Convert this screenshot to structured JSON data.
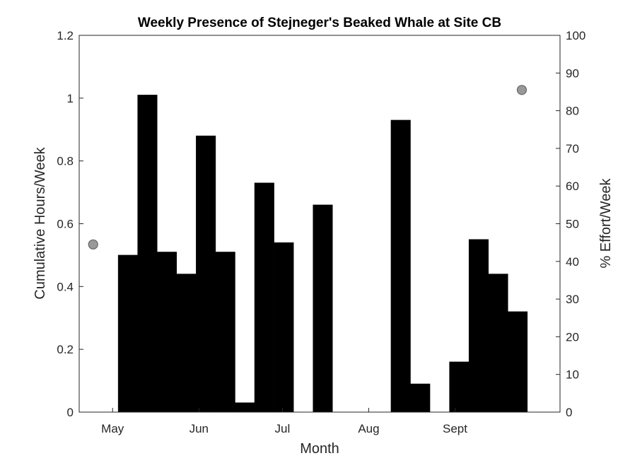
{
  "chart_data": {
    "type": "bar",
    "title": "Weekly Presence of Stejneger's Beaked Whale at Site CB",
    "xlabel": "Month",
    "ylabel_left": "Cumulative Hours/Week",
    "ylabel_right": "% Effort/Week",
    "ylim_left": [
      0,
      1.2
    ],
    "ylim_right": [
      0,
      100
    ],
    "left_ticks": [
      "0",
      "0.2",
      "0.4",
      "0.6",
      "0.8",
      "1",
      "1.2"
    ],
    "right_ticks": [
      "0",
      "10",
      "20",
      "30",
      "40",
      "50",
      "60",
      "70",
      "80",
      "90",
      "100"
    ],
    "month_labels": [
      "May",
      "Jun",
      "Jul",
      "Aug",
      "Sept"
    ],
    "grid": false,
    "bar_color": "#000000",
    "marker_color": "#999999",
    "series": [
      {
        "type": "bar",
        "axis": "left",
        "bins": [
          {
            "start": "2011-04-26",
            "end": "2011-05-03",
            "value": 0
          },
          {
            "start": "2011-05-03",
            "end": "2011-05-10",
            "value": 0.5
          },
          {
            "start": "2011-05-10",
            "end": "2011-05-17",
            "value": 1.01
          },
          {
            "start": "2011-05-17",
            "end": "2011-05-24",
            "value": 0.51
          },
          {
            "start": "2011-05-24",
            "end": "2011-05-31",
            "value": 0.44
          },
          {
            "start": "2011-05-31",
            "end": "2011-06-07",
            "value": 0.88
          },
          {
            "start": "2011-06-07",
            "end": "2011-06-14",
            "value": 0.51
          },
          {
            "start": "2011-06-14",
            "end": "2011-06-21",
            "value": 0.03
          },
          {
            "start": "2011-06-21",
            "end": "2011-06-28",
            "value": 0.73
          },
          {
            "start": "2011-06-28",
            "end": "2011-07-05",
            "value": 0.54
          },
          {
            "start": "2011-07-05",
            "end": "2011-07-12",
            "value": 0
          },
          {
            "start": "2011-07-12",
            "end": "2011-07-19",
            "value": 0.66
          },
          {
            "start": "2011-07-19",
            "end": "2011-07-26",
            "value": 0
          },
          {
            "start": "2011-07-26",
            "end": "2011-08-02",
            "value": 0
          },
          {
            "start": "2011-08-02",
            "end": "2011-08-09",
            "value": 0
          },
          {
            "start": "2011-08-09",
            "end": "2011-08-16",
            "value": 0.93
          },
          {
            "start": "2011-08-16",
            "end": "2011-08-23",
            "value": 0.09
          },
          {
            "start": "2011-08-23",
            "end": "2011-08-30",
            "value": 0
          },
          {
            "start": "2011-08-30",
            "end": "2011-09-06",
            "value": 0.16
          },
          {
            "start": "2011-09-06",
            "end": "2011-09-13",
            "value": 0.55
          },
          {
            "start": "2011-09-13",
            "end": "2011-09-20",
            "value": 0.44
          },
          {
            "start": "2011-09-20",
            "end": "2011-09-27",
            "value": 0.32
          }
        ]
      },
      {
        "type": "scatter",
        "axis": "right",
        "points": [
          {
            "date": "2011-04-24",
            "value": 44.5
          },
          {
            "date": "2011-09-25",
            "value": 85.5
          }
        ]
      }
    ]
  }
}
